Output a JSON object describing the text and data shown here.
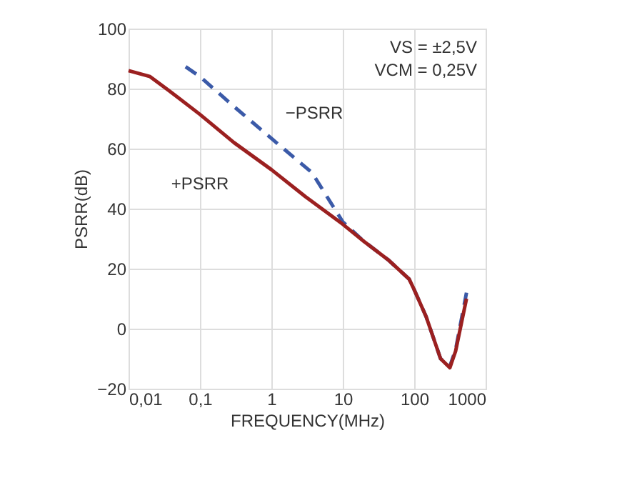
{
  "chart_data": {
    "type": "line",
    "xlabel": "FREQUENCY(MHz)",
    "ylabel": "PSRR(dB)",
    "log": "x",
    "grid": true,
    "marker": "none",
    "xlim": [
      0.01,
      1000
    ],
    "xticks": [
      {
        "value": 0.01,
        "label": "0,01"
      },
      {
        "value": 0.1,
        "label": "0,1"
      },
      1,
      10,
      100,
      1000
    ],
    "ylim": [
      -20,
      100
    ],
    "yticks": [
      {
        "value": -20,
        "label": "−20"
      },
      0,
      20,
      40,
      60,
      80,
      100
    ],
    "annotations": [
      "VS = ±2,5V",
      "VCM = 0,25V"
    ],
    "series": [
      {
        "name": "−PSRR",
        "color": "#3b5aa8",
        "line_style": "dashed",
        "x": [
          0.063,
          0.1,
          0.3,
          1,
          3.7,
          10,
          20,
          43,
          85,
          100,
          147,
          234,
          316,
          380,
          540
        ],
        "values": [
          87.3,
          84,
          74,
          63.4,
          52,
          35.6,
          29,
          23,
          16.5,
          13,
          4,
          -10,
          -12.5,
          -7,
          12
        ]
      },
      {
        "name": "+PSRR",
        "color": "#9b2020",
        "line_style": "solid",
        "x": [
          0.01,
          0.02,
          0.037,
          0.1,
          0.3,
          1,
          3,
          10,
          20,
          43,
          85,
          100,
          147,
          234,
          316,
          380,
          540
        ],
        "values": [
          86,
          84,
          79.3,
          71.4,
          62,
          53,
          44,
          34.8,
          29,
          23,
          16.5,
          13,
          4,
          -10,
          -13,
          -7.5,
          10
        ]
      }
    ]
  }
}
